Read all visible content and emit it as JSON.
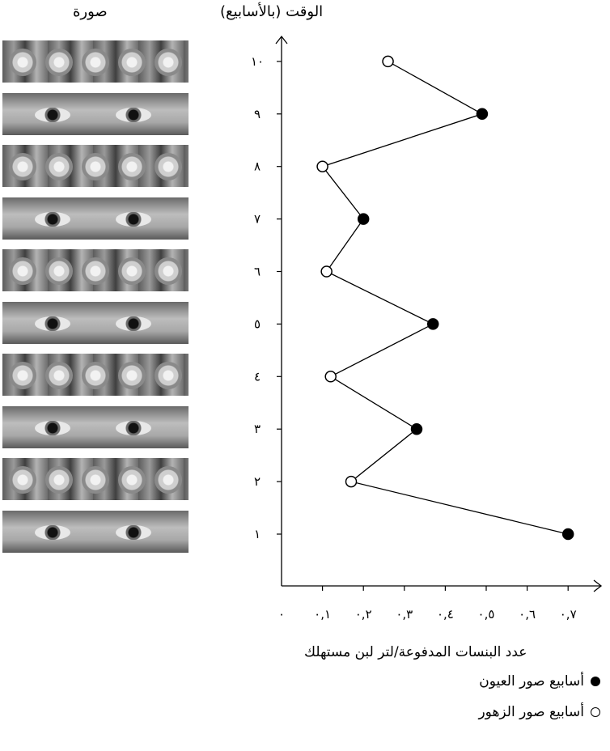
{
  "headers": {
    "time": "الوقت (بالأسابيع)",
    "image": "صورة"
  },
  "chart_data": {
    "type": "line",
    "title": "",
    "xlabel": "عدد البنسات المدفوعة/لتر لبن مستهلك",
    "ylabel": "الوقت (بالأسابيع)",
    "xlim": [
      0,
      0.7
    ],
    "ylim": [
      1,
      10
    ],
    "x_tick_labels": [
      "٠",
      "٠,١",
      "٠,٢",
      "٠,٣",
      "٠,٤",
      "٠,٥",
      "٠,٦",
      "٠,٧"
    ],
    "y_tick_labels": [
      "١",
      "٢",
      "٣",
      "٤",
      "٥",
      "٦",
      "٧",
      "٨",
      "٩",
      "١٠"
    ],
    "points": [
      {
        "week": 1,
        "value": 0.7,
        "type": "eyes"
      },
      {
        "week": 2,
        "value": 0.17,
        "type": "flowers"
      },
      {
        "week": 3,
        "value": 0.33,
        "type": "eyes"
      },
      {
        "week": 4,
        "value": 0.12,
        "type": "flowers"
      },
      {
        "week": 5,
        "value": 0.37,
        "type": "eyes"
      },
      {
        "week": 6,
        "value": 0.11,
        "type": "flowers"
      },
      {
        "week": 7,
        "value": 0.2,
        "type": "eyes"
      },
      {
        "week": 8,
        "value": 0.1,
        "type": "flowers"
      },
      {
        "week": 9,
        "value": 0.49,
        "type": "eyes"
      },
      {
        "week": 10,
        "value": 0.26,
        "type": "flowers"
      }
    ],
    "legend": [
      {
        "label": "أسابيع صور العيون",
        "marker": "filled-circle"
      },
      {
        "label": "أسابيع صور الزهور",
        "marker": "open-circle"
      }
    ]
  },
  "image_strips": [
    "flowers",
    "eyes",
    "flowers",
    "eyes",
    "flowers",
    "eyes",
    "flowers",
    "eyes",
    "flowers",
    "eyes"
  ]
}
